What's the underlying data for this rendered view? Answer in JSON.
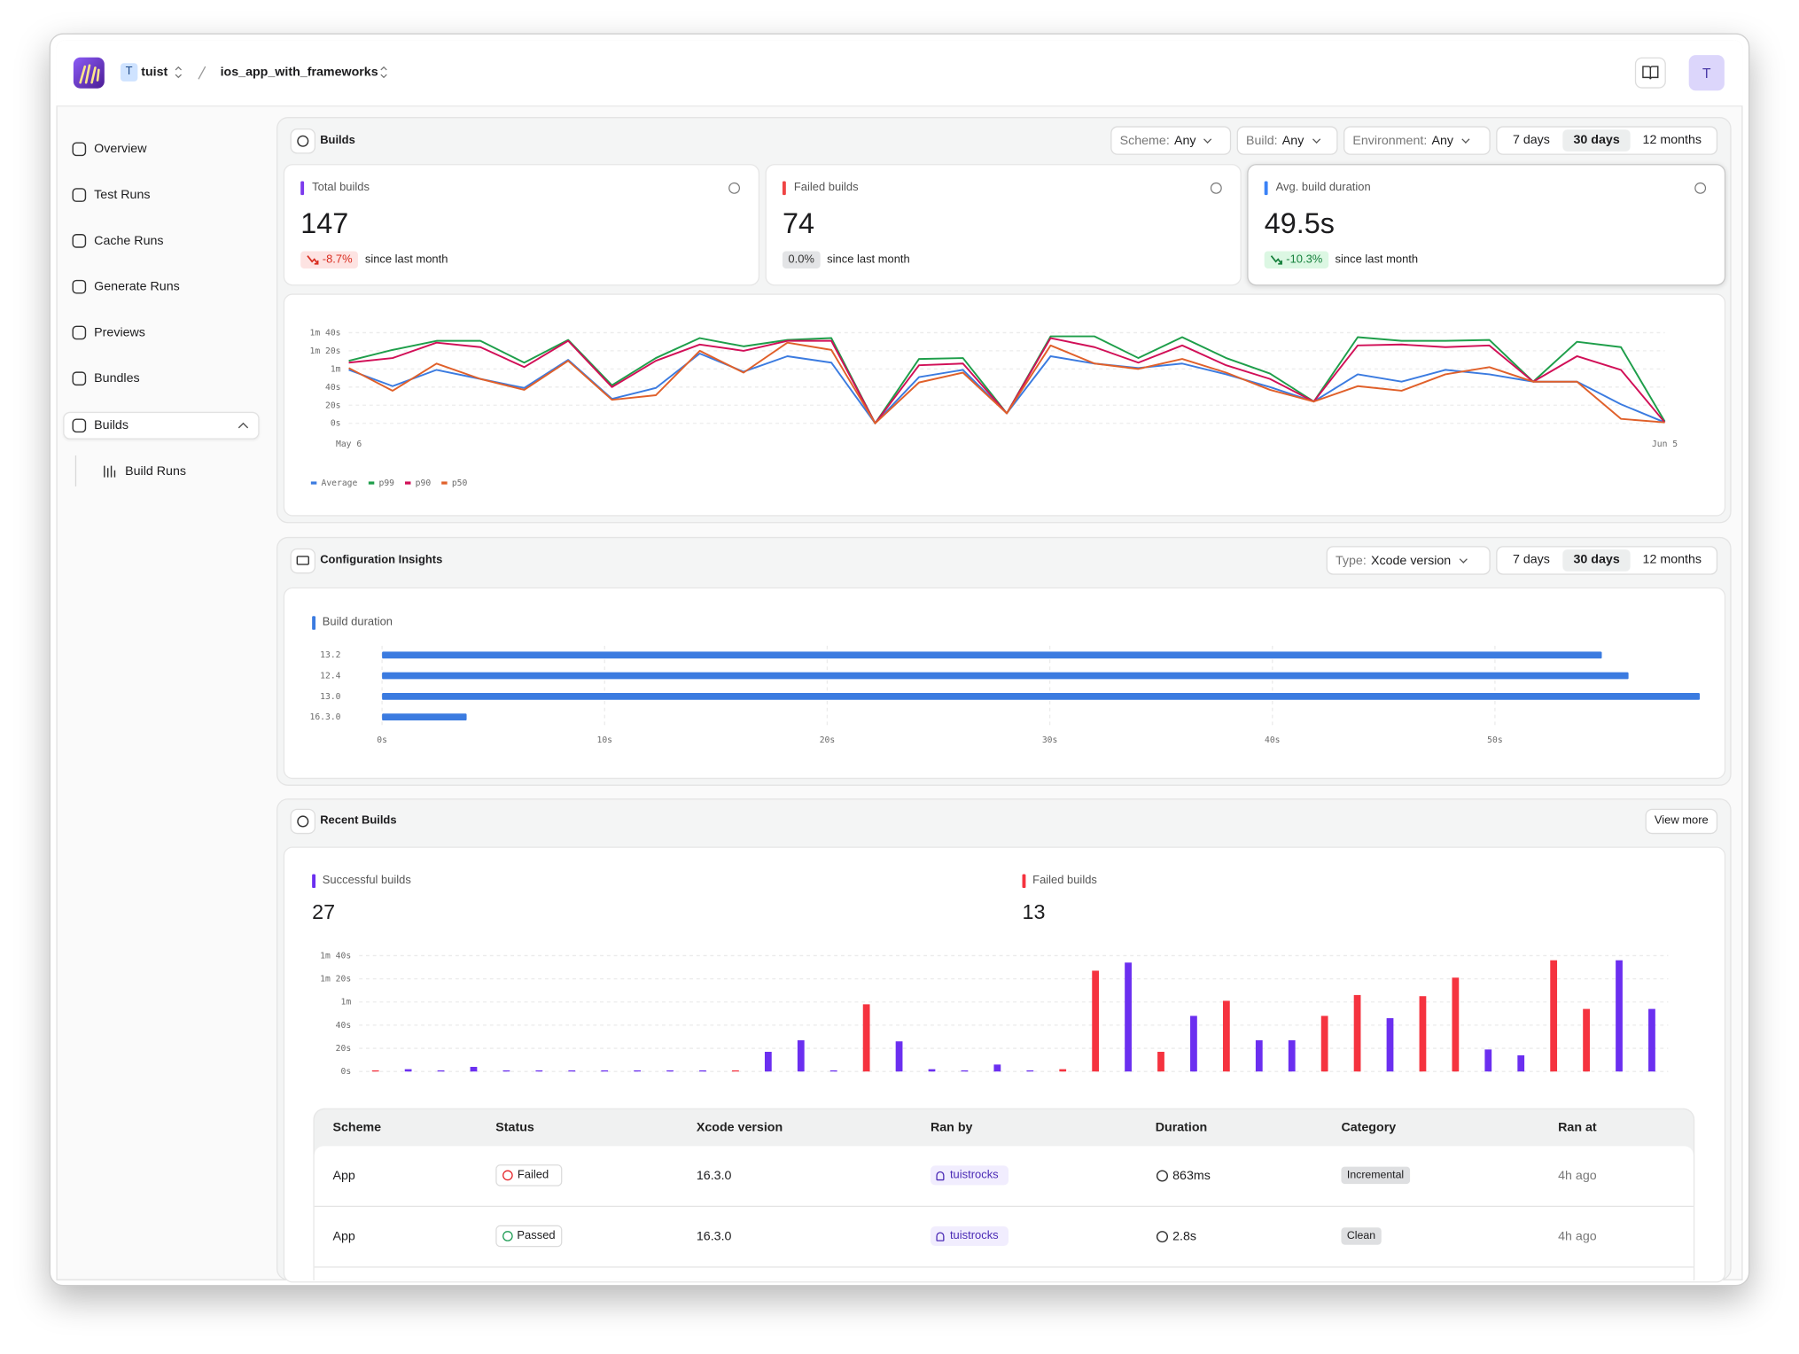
{
  "header": {
    "org_initial": "T",
    "org": "tuist",
    "project": "ios_app_with_frameworks",
    "avatar": "T"
  },
  "sidebar": {
    "items": [
      "Overview",
      "Test Runs",
      "Cache Runs",
      "Generate Runs",
      "Previews",
      "Bundles",
      "Builds"
    ],
    "selected": 6,
    "subitems": [
      "Build Runs"
    ]
  },
  "builds_panel": {
    "title": "Builds",
    "filters": [
      {
        "label": "Scheme:",
        "value": "Any"
      },
      {
        "label": "Build:",
        "value": "Any"
      },
      {
        "label": "Environment:",
        "value": "Any"
      }
    ],
    "ranges": [
      "7 days",
      "30 days",
      "12 months"
    ],
    "selected_range": 1,
    "selected_metric": 2,
    "metrics": [
      {
        "label": "Total builds",
        "color": "#7c3aed",
        "value": "147",
        "change": "-8.7%",
        "note": "since last month",
        "arrow": true,
        "badge_color": "#d92d20",
        "badge_bg": "#fde3e2"
      },
      {
        "label": "Failed builds",
        "color": "#ef4444",
        "value": "74",
        "change": "0.0%",
        "note": "since last month",
        "arrow": false,
        "badge_color": "#333333",
        "badge_bg": "#e3e4e6"
      },
      {
        "label": "Avg. build duration",
        "color": "#3b82f6",
        "value": "49.5s",
        "change": "-10.3%",
        "note": "since last month",
        "arrow": true,
        "badge_color": "#16803c",
        "badge_bg": "#dcf7e3"
      }
    ]
  },
  "insights_panel": {
    "title": "Configuration Insights",
    "filter": {
      "label": "Type:",
      "value": "Xcode version"
    },
    "ranges": [
      "7 days",
      "30 days",
      "12 months"
    ],
    "selected_range": 1
  },
  "recent_panel": {
    "title": "Recent Builds",
    "button": "View more"
  },
  "table": {
    "columns": [
      "Scheme",
      "Status",
      "Xcode version",
      "Ran by",
      "Duration",
      "Category",
      "Ran at"
    ],
    "rows": [
      [
        "App",
        "Failed",
        "16.3.0",
        "tuistrocks",
        "863ms",
        "Incremental",
        "4h ago"
      ],
      [
        "App",
        "Passed",
        "16.3.0",
        "tuistrocks",
        "2.8s",
        "Clean",
        "4h ago"
      ]
    ],
    "status_colors": [
      "#e5252a",
      "#1f9d55"
    ]
  },
  "chart_data": [
    {
      "type": "line",
      "categories": [
        "May 6",
        null,
        null,
        null,
        null,
        null,
        null,
        null,
        null,
        null,
        null,
        null,
        null,
        null,
        null,
        null,
        null,
        null,
        null,
        null,
        null,
        null,
        null,
        null,
        null,
        null,
        null,
        null,
        null,
        null,
        "Jun 5"
      ],
      "ylim": [
        0,
        100
      ],
      "yticks": [
        {
          "value": 0,
          "label": "0s"
        },
        {
          "value": 20,
          "label": "20s"
        },
        {
          "value": 40,
          "label": "40s"
        },
        {
          "value": 60,
          "label": "1m"
        },
        {
          "value": 80,
          "label": "1m 20s"
        },
        {
          "value": 100,
          "label": "1m 40s"
        }
      ],
      "grid": true,
      "legend": "bottom-left",
      "series": [
        {
          "name": "Average",
          "color": "#3b7be0",
          "values": [
            59,
            41,
            59,
            49,
            39,
            70,
            27,
            39,
            77,
            57,
            74,
            67,
            0,
            51,
            59,
            11,
            74,
            66,
            61,
            66,
            54,
            40,
            24,
            54,
            46,
            59,
            54,
            46,
            46,
            21,
            1
          ]
        },
        {
          "name": "p99",
          "color": "#1e9e4a",
          "values": [
            69,
            81,
            91,
            91,
            67,
            92,
            42,
            72,
            94,
            85,
            92,
            94,
            0,
            71,
            72,
            11,
            96,
            96,
            72,
            95,
            72,
            55,
            24,
            95,
            91,
            91,
            92,
            46,
            90,
            84,
            2
          ]
        },
        {
          "name": "p90",
          "color": "#d10f57",
          "values": [
            67,
            72,
            89,
            84,
            62,
            91,
            40,
            69,
            87,
            80,
            91,
            91,
            0,
            64,
            66,
            11,
            94,
            84,
            67,
            86,
            64,
            49,
            24,
            86,
            87,
            84,
            86,
            46,
            74,
            59,
            1
          ]
        },
        {
          "name": "p50",
          "color": "#e0602a",
          "values": [
            61,
            36,
            66,
            49,
            37,
            69,
            26,
            31,
            80,
            56,
            89,
            81,
            0,
            45,
            56,
            11,
            86,
            66,
            60,
            71,
            56,
            37,
            24,
            41,
            36,
            54,
            62,
            46,
            46,
            5,
            1
          ]
        }
      ]
    },
    {
      "type": "hbar",
      "title": "Build duration",
      "color": "#3b7be0",
      "categories": [
        "13.2",
        "12.4",
        "13.0",
        "16.3.0"
      ],
      "values": [
        54.8,
        56.0,
        59.2,
        3.8
      ],
      "xlim": [
        0,
        60
      ],
      "xticks": [
        {
          "value": 0,
          "label": "0s"
        },
        {
          "value": 10,
          "label": "10s"
        },
        {
          "value": 20,
          "label": "20s"
        },
        {
          "value": 30,
          "label": "30s"
        },
        {
          "value": 40,
          "label": "40s"
        },
        {
          "value": 50,
          "label": "50s"
        }
      ],
      "grid": true
    },
    {
      "type": "bar",
      "categories": [
        null,
        null,
        null,
        null,
        null,
        null,
        null,
        null,
        null,
        null,
        null,
        null,
        null,
        null,
        null,
        null,
        null,
        null,
        null,
        null,
        null,
        null,
        null,
        null,
        null,
        null,
        null,
        null,
        null,
        null,
        null,
        null,
        null,
        null,
        null,
        null,
        null,
        null,
        null,
        null
      ],
      "ylim": [
        0,
        100
      ],
      "yticks": [
        {
          "value": 0,
          "label": "0s"
        },
        {
          "value": 20,
          "label": "20s"
        },
        {
          "value": 40,
          "label": "40s"
        },
        {
          "value": 60,
          "label": "1m"
        },
        {
          "value": 80,
          "label": "1m 20s"
        },
        {
          "value": 100,
          "label": "1m 40s"
        }
      ],
      "grid": true,
      "series": [
        {
          "name": "Successful builds",
          "total": "27",
          "color": "#6b2ff0",
          "values": [
            null,
            2,
            1,
            4,
            1,
            1,
            1,
            1,
            1,
            1,
            1,
            null,
            17,
            27,
            1,
            null,
            26,
            2,
            1,
            6,
            1,
            null,
            null,
            94,
            null,
            48,
            null,
            27,
            27,
            null,
            null,
            46,
            null,
            null,
            19,
            14,
            null,
            null,
            96,
            54
          ]
        },
        {
          "name": "Failed builds",
          "total": "13",
          "color": "#f5333f",
          "values": [
            1,
            null,
            null,
            null,
            null,
            null,
            null,
            null,
            null,
            null,
            null,
            1,
            null,
            null,
            null,
            58,
            null,
            null,
            null,
            null,
            null,
            2,
            87,
            null,
            17,
            null,
            61,
            null,
            null,
            48,
            66,
            null,
            65,
            81,
            null,
            null,
            96,
            54,
            null,
            null
          ]
        }
      ]
    }
  ]
}
